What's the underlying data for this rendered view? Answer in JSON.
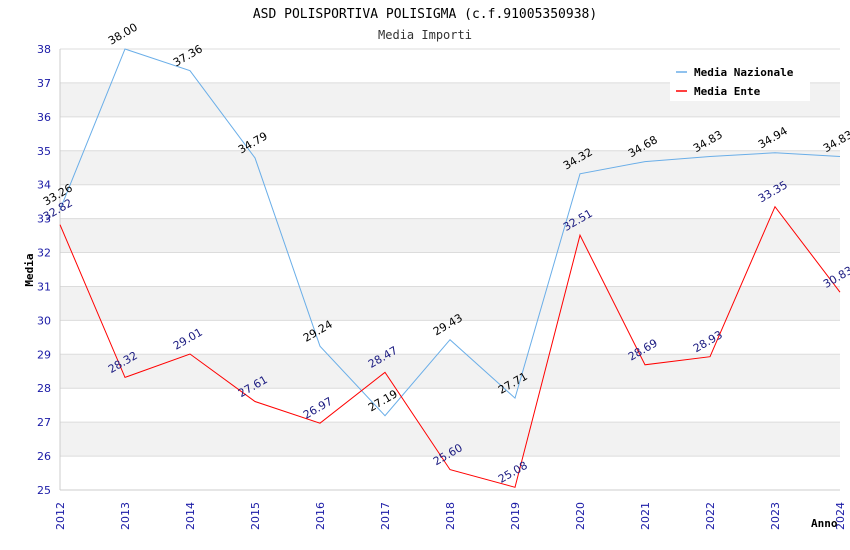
{
  "chart_data": {
    "type": "line",
    "title": "ASD POLISPORTIVA POLISIGMA (c.f.91005350938)",
    "subtitle": "Media Importi",
    "xlabel": "Anno",
    "ylabel": "Media",
    "x": [
      2012,
      2013,
      2014,
      2015,
      2016,
      2017,
      2018,
      2019,
      2020,
      2021,
      2022,
      2023,
      2024
    ],
    "ylim": [
      25,
      38
    ],
    "yticks": [
      25,
      26,
      27,
      28,
      29,
      30,
      31,
      32,
      33,
      34,
      35,
      36,
      37,
      38
    ],
    "grid": true,
    "legend_position": "top-right",
    "series": [
      {
        "name": "Media Nazionale",
        "color": "#6aaee8",
        "label_color": "#000000",
        "values": [
          33.26,
          38.0,
          37.36,
          34.79,
          29.24,
          27.19,
          29.43,
          27.71,
          34.32,
          34.68,
          34.83,
          34.94,
          34.83
        ],
        "labels": [
          "33.26",
          "38.00",
          "37.36",
          "34.79",
          "29.24",
          "27.19",
          "29.43",
          "27.71",
          "34.32",
          "34.68",
          "34.83",
          "34.94",
          "34.83"
        ]
      },
      {
        "name": "Media Ente",
        "color": "#ff0000",
        "label_color": "#1a1a80",
        "values": [
          32.82,
          28.32,
          29.01,
          27.61,
          26.97,
          28.47,
          25.6,
          25.08,
          32.51,
          28.69,
          28.93,
          33.35,
          30.83
        ],
        "labels": [
          "32.82",
          "28.32",
          "29.01",
          "27.61",
          "26.97",
          "28.47",
          "25.60",
          "25.08",
          "32.51",
          "28.69",
          "28.93",
          "33.35",
          "30.83"
        ]
      }
    ]
  }
}
